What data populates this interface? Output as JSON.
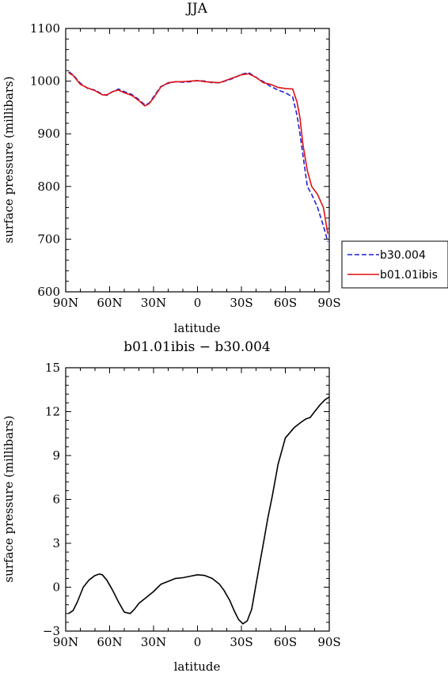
{
  "chart_data": [
    {
      "type": "line",
      "title": "JJA",
      "xlabel": "latitude",
      "ylabel": "surface pressure (millibars)",
      "xlim": [
        -90,
        90
      ],
      "ylim": [
        600,
        1100
      ],
      "x_ticks": [
        -90,
        -60,
        -30,
        0,
        30,
        60,
        90
      ],
      "x_tick_labels": [
        "90N",
        "60N",
        "30N",
        "0",
        "30S",
        "60S",
        "90S"
      ],
      "y_ticks": [
        600,
        700,
        800,
        900,
        1000,
        1100
      ],
      "y_tick_labels": [
        "600",
        "700",
        "800",
        "900",
        "1000",
        "1100"
      ],
      "legend": {
        "placement": "right"
      },
      "series": [
        {
          "name": "b30.004",
          "color": "#1f1fd6",
          "dash": "dashed",
          "x": [
            -88,
            -85,
            -80,
            -75,
            -70,
            -65,
            -62,
            -58,
            -54,
            -50,
            -45,
            -40,
            -36,
            -33,
            -30,
            -25,
            -20,
            -15,
            -10,
            -5,
            0,
            5,
            10,
            15,
            20,
            25,
            30,
            35,
            40,
            45,
            50,
            55,
            60,
            65,
            68,
            70,
            72,
            75,
            78,
            82,
            86,
            89
          ],
          "y": [
            1018,
            1012,
            996,
            986,
            983,
            975,
            973,
            980,
            985,
            980,
            975,
            965,
            955,
            958,
            970,
            990,
            996,
            999,
            998,
            999,
            1001,
            1000,
            997,
            997,
            1001,
            1006,
            1013,
            1016,
            1007,
            999,
            990,
            983,
            978,
            970,
            935,
            900,
            860,
            800,
            785,
            760,
            725,
            695
          ]
        },
        {
          "name": "b01.01ibis",
          "color": "#e01010",
          "dash": "solid",
          "x": [
            -88,
            -85,
            -80,
            -75,
            -70,
            -65,
            -62,
            -58,
            -54,
            -50,
            -45,
            -40,
            -36,
            -33,
            -30,
            -25,
            -20,
            -15,
            -10,
            -5,
            0,
            5,
            10,
            15,
            20,
            25,
            30,
            35,
            40,
            45,
            50,
            55,
            60,
            65,
            68,
            70,
            72,
            75,
            78,
            82,
            86,
            89
          ],
          "y": [
            1016,
            1011,
            994,
            987,
            982,
            974,
            974,
            980,
            983,
            978,
            973,
            963,
            953,
            957,
            968,
            989,
            997,
            999,
            999,
            1000,
            1001,
            999,
            998,
            997,
            1002,
            1007,
            1012,
            1014,
            1007,
            997,
            994,
            988,
            986,
            985,
            960,
            930,
            880,
            830,
            800,
            785,
            760,
            710
          ]
        }
      ]
    },
    {
      "type": "line",
      "title": "b01.01ibis − b30.004",
      "xlabel": "latitude",
      "ylabel": "surface pressure (millibars)",
      "xlim": [
        -90,
        90
      ],
      "ylim": [
        -3,
        15
      ],
      "x_ticks": [
        -90,
        -60,
        -30,
        0,
        30,
        60,
        90
      ],
      "x_tick_labels": [
        "90N",
        "60N",
        "30N",
        "0",
        "30S",
        "60S",
        "90S"
      ],
      "y_ticks": [
        -3,
        0,
        3,
        6,
        9,
        12,
        15
      ],
      "y_tick_labels": [
        "−3",
        "0",
        "3",
        "6",
        "9",
        "12",
        "15"
      ],
      "series": [
        {
          "color": "#000000",
          "dash": "solid",
          "x": [
            -88,
            -85,
            -82,
            -78,
            -74,
            -70,
            -67,
            -65,
            -62,
            -58,
            -54,
            -50,
            -46,
            -43,
            -40,
            -35,
            -30,
            -25,
            -20,
            -15,
            -10,
            -5,
            0,
            5,
            10,
            15,
            18,
            22,
            25,
            28,
            31,
            34,
            37,
            40,
            43,
            45,
            48,
            51,
            55,
            60,
            66,
            71,
            74,
            77,
            80,
            84,
            87,
            90
          ],
          "y": [
            -1.8,
            -1.6,
            -1.0,
            0.0,
            0.5,
            0.8,
            0.9,
            0.85,
            0.5,
            -0.2,
            -1.0,
            -1.7,
            -1.8,
            -1.5,
            -1.1,
            -0.7,
            -0.3,
            0.2,
            0.4,
            0.6,
            0.65,
            0.75,
            0.85,
            0.8,
            0.6,
            0.2,
            -0.2,
            -0.9,
            -1.6,
            -2.2,
            -2.5,
            -2.3,
            -1.5,
            0.2,
            1.9,
            3.0,
            4.7,
            6.2,
            8.4,
            10.2,
            10.9,
            11.3,
            11.5,
            11.6,
            12.0,
            12.5,
            12.8,
            13.0
          ]
        }
      ]
    }
  ]
}
